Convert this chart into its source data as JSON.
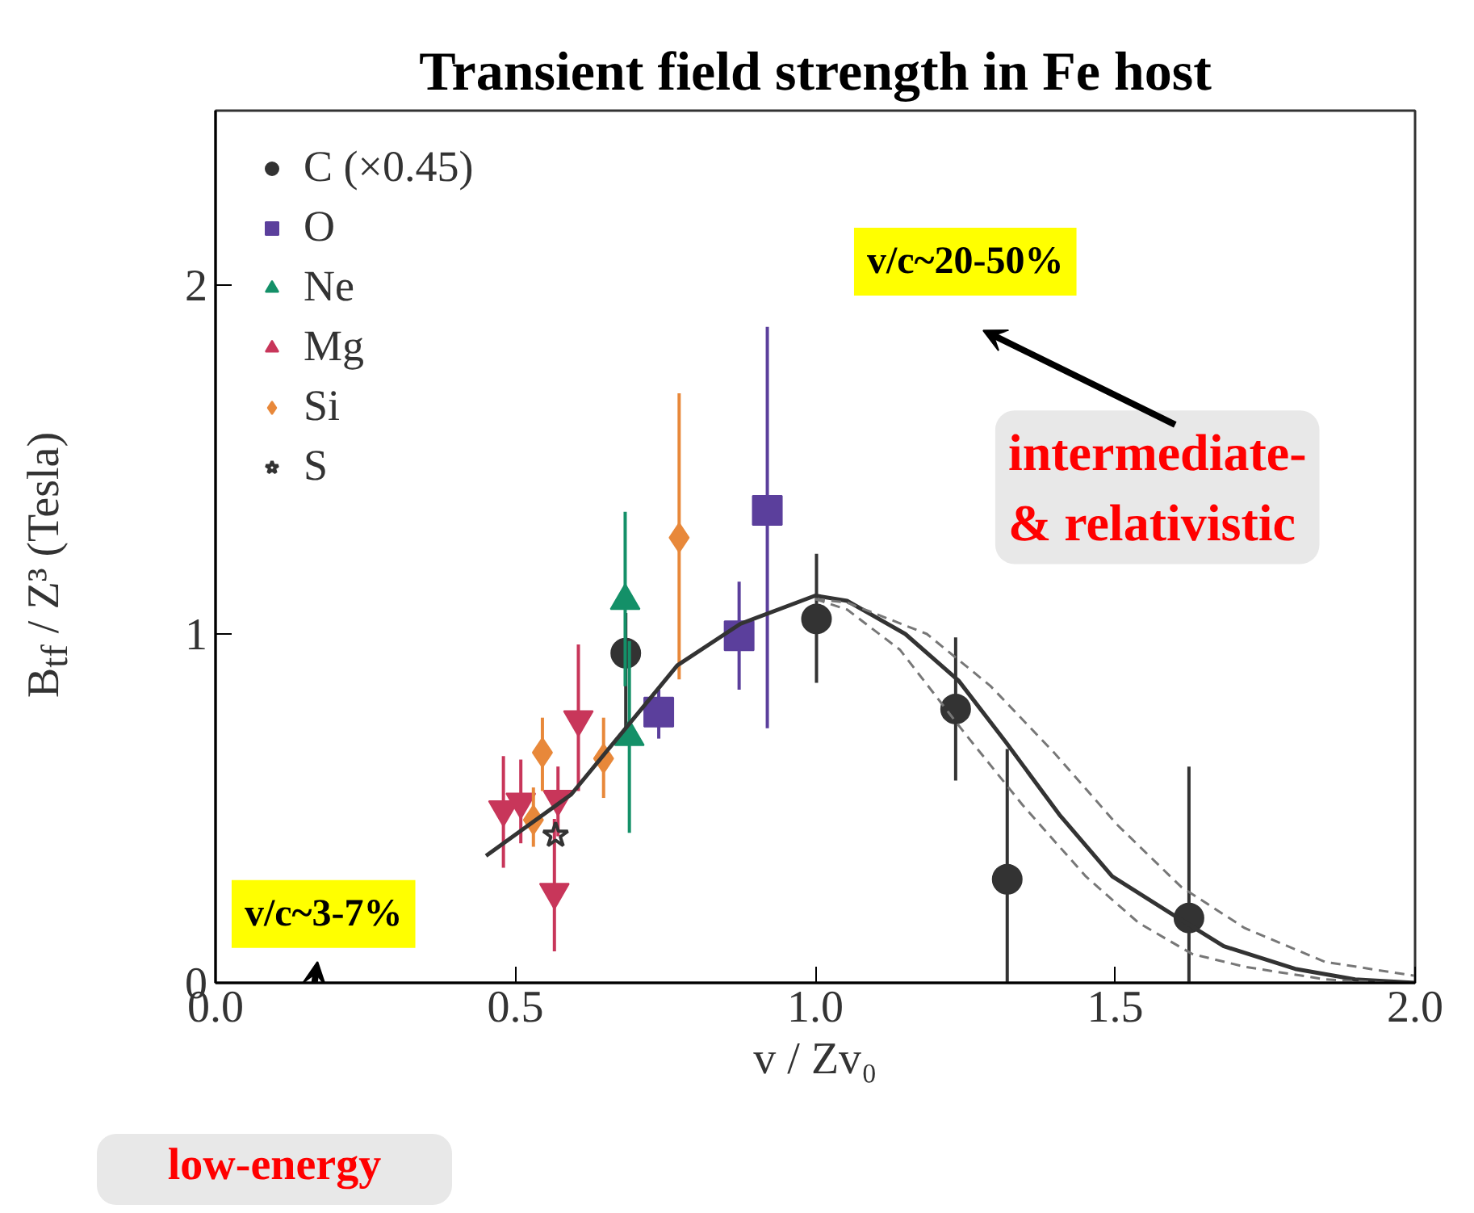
{
  "chart_data": {
    "type": "scatter",
    "title": "Transient field strength in Fe host",
    "xlabel": "v / Zv₀",
    "ylabel": "B$_{tf}$ / Z³ (Tesla)",
    "xlim": [
      0,
      2
    ],
    "ylim": [
      0,
      2.5
    ],
    "xticks": [
      {
        "value": 0,
        "label": "0.0"
      },
      {
        "value": 0.5,
        "label": "0.5"
      },
      {
        "value": 1,
        "label": "1.0"
      },
      {
        "value": 1.5,
        "label": "1.5"
      },
      {
        "value": 2,
        "label": "2.0"
      }
    ],
    "yticks": [
      0,
      1,
      2
    ],
    "grid": false,
    "legend": "top left",
    "series": [
      {
        "name": "C (×0.45)",
        "color": "#333333",
        "marker": "circle",
        "x": [
          0.684,
          1.002,
          1.234,
          1.32,
          1.623
        ],
        "values": [
          0.945,
          1.043,
          0.785,
          0.297,
          0.186
        ],
        "errors": [
          [
            0.73,
            1.06
          ],
          [
            0.86,
            1.23
          ],
          [
            0.58,
            0.99
          ],
          [
            0,
            0.67
          ],
          [
            0,
            0.62
          ]
        ]
      },
      {
        "name": "O",
        "color": "#5b3f9c",
        "marker": "square",
        "x": [
          0.739,
          0.873,
          0.92
        ],
        "values": [
          0.776,
          0.995,
          1.354
        ],
        "errors": [
          [
            0.7,
            0.84
          ],
          [
            0.84,
            1.15
          ],
          [
            0.73,
            1.88
          ]
        ]
      },
      {
        "name": "Ne",
        "color": "#149068",
        "marker": "triangle",
        "x": [
          0.683,
          0.69
        ],
        "values": [
          1.095,
          0.705
        ],
        "errors": [
          [
            0.85,
            1.35
          ],
          [
            0.43,
            0.98
          ]
        ]
      },
      {
        "name": "Mg",
        "color": "#c8365a",
        "marker": "triangle",
        "x": [
          0.48,
          0.509,
          0.571,
          0.605,
          0.565
        ],
        "values": [
          0.497,
          0.519,
          0.527,
          0.755,
          0.26
        ],
        "errors": [
          [
            0.33,
            0.65
          ],
          [
            0.4,
            0.64
          ],
          [
            0.42,
            0.62
          ],
          [
            0.55,
            0.97
          ],
          [
            0.09,
            0.47
          ]
        ]
      },
      {
        "name": "Si",
        "color": "#e8883a",
        "marker": "diamond",
        "x": [
          0.545,
          0.53,
          0.647,
          0.773
        ],
        "values": [
          0.66,
          0.467,
          0.643,
          1.276
        ],
        "errors": [
          [
            0.55,
            0.76
          ],
          [
            0.39,
            0.56
          ],
          [
            0.53,
            0.76
          ],
          [
            0.87,
            1.69
          ]
        ]
      },
      {
        "name": "S",
        "color": "#333333",
        "marker": "star",
        "x": [
          0.567
        ],
        "values": [
          0.423
        ]
      },
      {
        "type": "line",
        "color": "#333333",
        "line_style": "solid",
        "x": [
          0.451,
          0.593,
          0.77,
          0.875,
          1.0,
          1.053,
          1.15,
          1.239,
          1.318,
          1.407,
          1.495,
          1.592,
          1.681,
          1.8,
          1.9,
          2.0
        ],
        "values": [
          0.364,
          0.54,
          0.91,
          1.029,
          1.11,
          1.095,
          1.0,
          0.866,
          0.689,
          0.482,
          0.305,
          0.2,
          0.105,
          0.04,
          0.01,
          0
        ]
      },
      {
        "type": "line",
        "color": "#777777",
        "line_style": "dashed",
        "x": [
          1.0,
          1.053,
          1.186,
          1.292,
          1.398,
          1.504,
          1.61,
          1.716,
          1.85,
          2.0
        ],
        "values": [
          1.1,
          1.09,
          1.0,
          0.851,
          0.66,
          0.452,
          0.275,
          0.157,
          0.06,
          0.02
        ]
      },
      {
        "type": "line",
        "color": "#777777",
        "line_style": "dashed",
        "x": [
          1.0,
          1.053,
          1.141,
          1.248,
          1.345,
          1.451,
          1.539,
          1.628,
          1.716,
          1.85,
          1.95
        ],
        "values": [
          1.1,
          1.07,
          0.955,
          0.718,
          0.511,
          0.305,
          0.172,
          0.083,
          0.046,
          0.01,
          0
        ]
      }
    ],
    "annotations": [
      "v/c~20-50%",
      "v/c~3-7%",
      "intermediate-\n& relativistic",
      "low-energy"
    ]
  }
}
